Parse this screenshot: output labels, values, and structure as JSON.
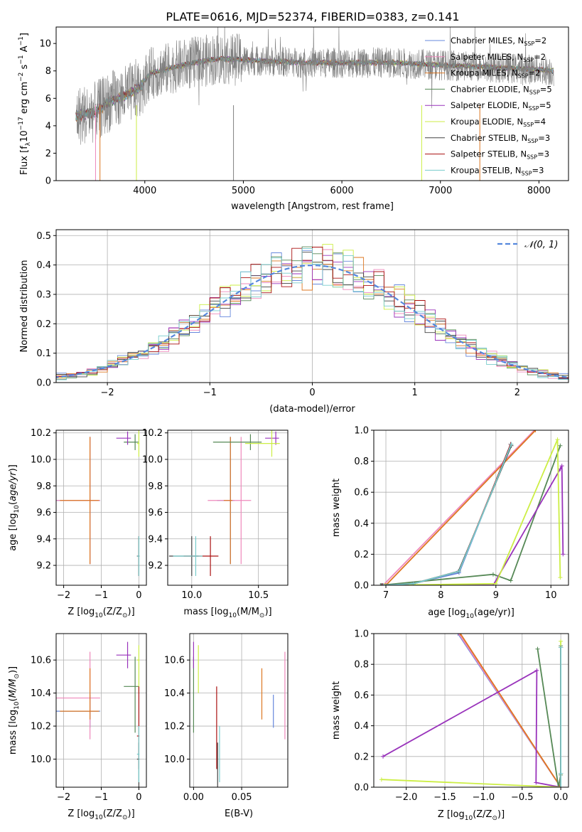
{
  "chart_data": [
    {
      "id": "spectrum",
      "type": "line",
      "title": "PLATE=0616, MJD=52374, FIBERID=0383, z=0.141",
      "xlabel": "wavelength [Angstrom, rest frame]",
      "ylabel": "Flux [f",
      "ylabel_sub": "λ",
      "ylabel_rest1": "10",
      "ylabel_sup1": "−17",
      "ylabel_rest2": " erg cm",
      "ylabel_sup2": "−2",
      "ylabel_rest3": " s",
      "ylabel_sup3": "−1",
      "ylabel_rest4": " A",
      "ylabel_sup4": "−1",
      "ylabel_rest5": "]",
      "xlim": [
        3100,
        8300
      ],
      "ylim": [
        0,
        11.2
      ],
      "xticks": [
        4000,
        5000,
        6000,
        7000,
        8000
      ],
      "yticks": [
        0,
        2,
        4,
        6,
        8,
        10
      ],
      "grid": false,
      "legend_position": "top-right",
      "legend": [
        {
          "pre": "Chabrier MILES, N",
          "sub": "SSP",
          "post": "=2",
          "color": "#6688dd"
        },
        {
          "pre": "Salpeter MILES, N",
          "sub": "SSP",
          "post": "=2",
          "color": "#ee88bb"
        },
        {
          "pre": "Kroupa MILES, N",
          "sub": "SSP",
          "post": "=2",
          "color": "#dd7722"
        },
        {
          "pre": "Chabrier ELODIE, N",
          "sub": "SSP",
          "post": "=5",
          "color": "#558855"
        },
        {
          "pre": "Salpeter ELODIE, N",
          "sub": "SSP",
          "post": "=5",
          "color": "#9933bb"
        },
        {
          "pre": "Kroupa ELODIE, N",
          "sub": "SSP",
          "post": "=4",
          "color": "#ccee44"
        },
        {
          "pre": "Chabrier STELIB, N",
          "sub": "SSP",
          "post": "=3",
          "color": "#444444"
        },
        {
          "pre": "Salpeter STELIB, N",
          "sub": "SSP",
          "post": "=3",
          "color": "#aa1111"
        },
        {
          "pre": "Kroupa STELIB, N",
          "sub": "SSP",
          "post": "=3",
          "color": "#77cccc"
        }
      ],
      "data_color": "#808080",
      "continuum": [
        [
          3300,
          4.7
        ],
        [
          3500,
          5.0
        ],
        [
          3650,
          5.8
        ],
        [
          3800,
          6.2
        ],
        [
          3950,
          6.8
        ],
        [
          4050,
          7.8
        ],
        [
          4250,
          8.2
        ],
        [
          4500,
          8.6
        ],
        [
          4750,
          8.9
        ],
        [
          5000,
          8.8
        ],
        [
          5300,
          8.7
        ],
        [
          5600,
          8.6
        ],
        [
          5900,
          8.6
        ],
        [
          6200,
          8.6
        ],
        [
          6500,
          8.6
        ],
        [
          6800,
          8.5
        ],
        [
          7100,
          8.4
        ],
        [
          7400,
          8.3
        ],
        [
          7700,
          8.2
        ],
        [
          8000,
          8.1
        ],
        [
          8150,
          8.0
        ]
      ]
    },
    {
      "id": "residuals",
      "type": "line",
      "xlabel": "(data-model)/error",
      "ylabel": "Normed distribution",
      "xlim": [
        -2.5,
        2.5
      ],
      "ylim": [
        0,
        0.52
      ],
      "xticks": [
        -2,
        -1,
        0,
        1,
        2
      ],
      "yticks": [
        0.0,
        0.1,
        0.2,
        0.3,
        0.4,
        0.5
      ],
      "grid": true,
      "legend_position": "top-right",
      "gaussian_label": "𝒩(0, 1)",
      "gaussian_color": "#5588dd",
      "bin_width": 0.1
    },
    {
      "id": "age_vs_Z",
      "type": "scatter",
      "xlabel": "Z [log",
      "xlabel_sub": "10",
      "xlabel_post": "(Z/Z",
      "xlabel_sub2": "⊙",
      "xlabel_end": ")]",
      "ylabel": "age  [log",
      "ylabel_sub": "10",
      "ylabel_post": "(age/yr)]",
      "xlim": [
        -2.2,
        0.2
      ],
      "ylim": [
        9.05,
        10.22
      ],
      "xticks": [
        -2,
        -1,
        0
      ],
      "yticks": [
        9.2,
        9.4,
        9.6,
        9.8,
        10.0,
        10.2
      ],
      "grid": true
    },
    {
      "id": "age_vs_mass",
      "type": "scatter",
      "xlabel": "mass [log",
      "xlabel_sub": "10",
      "xlabel_post": "(M/M",
      "xlabel_sub2": "⊙",
      "xlabel_end": ")]",
      "xlim": [
        9.82,
        10.72
      ],
      "ylim": [
        9.05,
        10.22
      ],
      "xticks": [
        10.0,
        10.5
      ],
      "yticks": [
        9.2,
        9.4,
        9.6,
        9.8,
        10.0,
        10.2
      ],
      "grid": true
    },
    {
      "id": "weight_vs_age",
      "type": "line",
      "xlabel": "age  [log",
      "xlabel_sub": "10",
      "xlabel_post": "(age/yr)]",
      "ylabel": "mass weight",
      "xlim": [
        6.78,
        10.32
      ],
      "ylim": [
        0,
        1.0
      ],
      "xticks": [
        7,
        8,
        9,
        10
      ],
      "yticks": [
        0.0,
        0.2,
        0.4,
        0.6,
        0.8,
        1.0
      ],
      "grid": true,
      "series": [
        {
          "color": "#6688dd",
          "x": [
            6.95,
            7.48,
            8.33,
            9.27
          ],
          "y": [
            0.0,
            0.01,
            0.08,
            0.91
          ]
        },
        {
          "color": "#ee88bb",
          "x": [
            6.95,
            9.7
          ],
          "y": [
            0.0,
            1.0
          ]
        },
        {
          "color": "#dd7722",
          "x": [
            7.0,
            9.72
          ],
          "y": [
            0.0,
            1.0
          ]
        },
        {
          "color": "#558855",
          "x": [
            6.9,
            8.95,
            9.27,
            10.17
          ],
          "y": [
            0.0,
            0.07,
            0.03,
            0.9
          ]
        },
        {
          "color": "#9933bb",
          "x": [
            6.92,
            8.95,
            10.17,
            10.2,
            10.22
          ],
          "y": [
            0.0,
            0.0,
            0.75,
            0.77,
            0.2
          ]
        },
        {
          "color": "#ccee44",
          "x": [
            6.98,
            9.0,
            10.12,
            10.17
          ],
          "y": [
            0.0,
            0.01,
            0.94,
            0.05
          ]
        },
        {
          "color": "#444444",
          "x": [
            6.92,
            7.5,
            8.32,
            9.28
          ],
          "y": [
            0.0,
            0.01,
            0.09,
            0.9
          ]
        },
        {
          "color": "#aa1111",
          "x": [
            6.94,
            7.5,
            8.33,
            9.27
          ],
          "y": [
            0.0,
            0.01,
            0.09,
            0.91
          ]
        },
        {
          "color": "#77cccc",
          "x": [
            6.95,
            7.5,
            8.33,
            9.28
          ],
          "y": [
            0.0,
            0.01,
            0.09,
            0.91
          ]
        }
      ]
    },
    {
      "id": "mass_vs_Z",
      "type": "scatter",
      "xlabel": "Z [log",
      "xlabel_sub": "10",
      "xlabel_post": "(Z/Z",
      "xlabel_sub2": "⊙",
      "xlabel_end": ")]",
      "ylabel": "mass [log",
      "ylabel_sub": "10",
      "ylabel_post": "(M/M",
      "ylabel_sub2": "⊙",
      "ylabel_end": ")]",
      "xlim": [
        -2.2,
        0.2
      ],
      "ylim": [
        9.83,
        10.76
      ],
      "xticks": [
        -2,
        -1,
        0
      ],
      "yticks": [
        10.0,
        10.2,
        10.4,
        10.6
      ],
      "grid": true
    },
    {
      "id": "mass_vs_ebv",
      "type": "scatter",
      "xlabel": "E(B-V)",
      "xlim": [
        -0.004,
        0.098
      ],
      "ylim": [
        9.83,
        10.76
      ],
      "xticks": [
        0.0,
        0.05
      ],
      "yticks": [
        10.0,
        10.2,
        10.4,
        10.6
      ],
      "grid": true
    },
    {
      "id": "weight_vs_Z",
      "type": "line",
      "xlabel": "Z [log",
      "xlabel_sub": "10",
      "xlabel_post": "(Z/Z",
      "xlabel_sub2": "⊙",
      "xlabel_end": ")]",
      "ylabel": "mass weight",
      "xlim": [
        -2.42,
        0.1
      ],
      "ylim": [
        0,
        1.0
      ],
      "xticks": [
        -2.0,
        -1.5,
        -1.0,
        -0.5,
        0.0
      ],
      "yticks": [
        0.0,
        0.2,
        0.4,
        0.6,
        0.8,
        1.0
      ],
      "grid": true,
      "series": [
        {
          "color": "#6688dd",
          "x": [
            -1.33,
            0.0
          ],
          "y": [
            1.0,
            0.0
          ]
        },
        {
          "color": "#ee88bb",
          "x": [
            -1.32,
            0.0
          ],
          "y": [
            1.0,
            0.0
          ]
        },
        {
          "color": "#dd7722",
          "x": [
            -1.3,
            0.0
          ],
          "y": [
            1.0,
            0.0
          ]
        },
        {
          "color": "#558855",
          "x": [
            -0.3,
            -0.03,
            0.0,
            0.0
          ],
          "y": [
            0.9,
            0.0,
            0.08,
            0.92
          ]
        },
        {
          "color": "#9933bb",
          "x": [
            -2.3,
            -0.31,
            -0.32,
            0.0
          ],
          "y": [
            0.2,
            0.76,
            0.03,
            0.0
          ]
        },
        {
          "color": "#ccee44",
          "x": [
            -2.32,
            0.0,
            0.0
          ],
          "y": [
            0.05,
            0.0,
            0.95
          ]
        },
        {
          "color": "#444444",
          "x": [
            0.0,
            0.0,
            0.0
          ],
          "y": [
            0.0,
            0.09,
            0.91
          ]
        },
        {
          "color": "#aa1111",
          "x": [
            0.0,
            0.0,
            0.0
          ],
          "y": [
            0.0,
            0.09,
            0.91
          ]
        },
        {
          "color": "#77cccc",
          "x": [
            0.0,
            0.0,
            0.0
          ],
          "y": [
            0.0,
            0.09,
            0.91
          ]
        }
      ]
    }
  ],
  "estimates": [
    {
      "color": "#6688dd",
      "Z": -1.3,
      "Zerr": 0.9,
      "age": 9.69,
      "ageerr": 0.48,
      "mass": 10.29,
      "masserr": 0.1,
      "massup": 0.1,
      "ebv": 0.083,
      "ebverr": 0.2
    },
    {
      "color": "#ee88bb",
      "Z": -1.3,
      "Zerr": 0.9,
      "age": 9.69,
      "ageerr": 0.48,
      "mass": 10.37,
      "masserr": 0.25,
      "massup": 0.28,
      "ebv": 0.095,
      "ebverr": 0.17
    },
    {
      "color": "#dd7722",
      "Z": -1.3,
      "Zerr": 0.8,
      "age": 9.69,
      "ageerr": 0.48,
      "mass": 10.29,
      "masserr": 0.05,
      "massup": 0.26,
      "ebv": 0.071,
      "ebverr": 0.2
    },
    {
      "color": "#558855",
      "Z": -0.1,
      "Zerr": 0.3,
      "age": 10.13,
      "ageerr": 0.06,
      "mass": 10.44,
      "masserr": 0.28,
      "massup": 0.18,
      "ebv": 0.0,
      "ebverr": 0.28
    },
    {
      "color": "#9933bb",
      "Z": -0.3,
      "Zerr": 0.3,
      "age": 10.16,
      "ageerr": 0.05,
      "mass": 10.63,
      "masserr": 0.08,
      "massup": 0.08,
      "ebv": 0.0,
      "ebverr": 0.18
    },
    {
      "color": "#ccee44",
      "Z": 0.0,
      "Zerr": 0.05,
      "age": 10.12,
      "ageerr": 0.1,
      "mass": 10.6,
      "masserr": 0.2,
      "massup": 0.09,
      "ebv": 0.005,
      "ebverr": 0.15
    },
    {
      "color": "#444444",
      "Z": 0.0,
      "Zerr": 0.05,
      "age": 9.27,
      "ageerr": 0.15,
      "mass": 10.0,
      "masserr": 0.17,
      "massup": 0.1,
      "ebv": 0.025,
      "ebverr": 0.3
    },
    {
      "color": "#aa1111",
      "Z": 0.0,
      "Zerr": 0.05,
      "age": 9.27,
      "ageerr": 0.15,
      "mass": 10.14,
      "masserr": 0.2,
      "massup": 0.3,
      "ebv": 0.024,
      "ebverr": 0.3
    },
    {
      "color": "#77cccc",
      "Z": 0.0,
      "Zerr": 0.05,
      "age": 9.27,
      "ageerr": 0.15,
      "mass": 10.03,
      "masserr": 0.17,
      "massup": 0.17,
      "ebv": 0.027,
      "ebverr": 0.3
    }
  ]
}
